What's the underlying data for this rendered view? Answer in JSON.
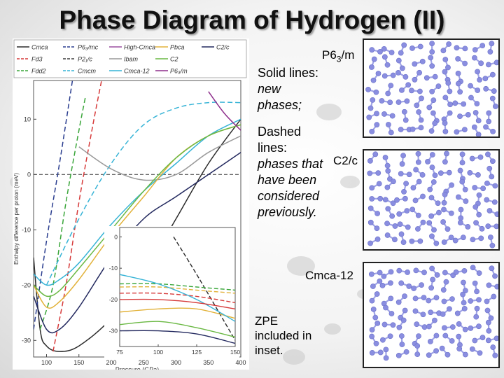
{
  "slide": {
    "title": "Phase Diagram of Hydrogen (II)",
    "note_solid_label": "Solid lines:",
    "note_solid_text": "new phases;",
    "note_dashed_label": "Dashed lines:",
    "note_dashed_text": "phases that have been considered previously.",
    "phase_top": "P6",
    "phase_top_sub": "3",
    "phase_top_suffix": "/m",
    "phase_mid": "C2/c",
    "phase_bottom": "Cmca-12",
    "zpe_note": "ZPE included in inset."
  },
  "colors": {
    "cmca": "#2b2b2b",
    "fd3": "#d63a3a",
    "fdd2": "#3aa63a",
    "p6mc": "#2a3d8f",
    "p21c": "#3e3e3e",
    "cmcm": "#35b3d6",
    "highcmca": "#9b4fa0",
    "ibam": "#999999",
    "cmca12": "#35b3d6",
    "pbca": "#e2b23a",
    "c2": "#6ab843",
    "p63m": "#8e2f8c",
    "c2c": "#22285e",
    "molecule": "#8a8ee0"
  },
  "chart_data": {
    "type": "line",
    "xlabel": "Pressure (GPa)",
    "ylabel": "Enthalpy difference per proton (meV)",
    "x_ticks": [
      100,
      150,
      200,
      250,
      300,
      350,
      400
    ],
    "y_ticks": [
      10,
      0,
      -10,
      -20,
      -30
    ],
    "xlim": [
      80,
      400
    ],
    "ylim": [
      -33,
      17
    ],
    "legend": [
      {
        "name": "Cmca",
        "style": "solid",
        "color": "#2b2b2b"
      },
      {
        "name": "Fd3",
        "style": "dashed",
        "color": "#d63a3a"
      },
      {
        "name": "Fdd2",
        "style": "dashed",
        "color": "#3aa63a"
      },
      {
        "name": "P6₃/mc",
        "style": "dashed",
        "color": "#2a3d8f"
      },
      {
        "name": "P2₁/c",
        "style": "dashed",
        "color": "#3e3e3e"
      },
      {
        "name": "Cmcm",
        "style": "dashed",
        "color": "#35b3d6"
      },
      {
        "name": "High-Cmca",
        "style": "solid",
        "color": "#9b4fa0"
      },
      {
        "name": "Ibam",
        "style": "solid",
        "color": "#999999"
      },
      {
        "name": "Cmca-12",
        "style": "solid",
        "color": "#35b3d6"
      },
      {
        "name": "Pbca",
        "style": "solid",
        "color": "#e2b23a"
      },
      {
        "name": "C2",
        "style": "solid",
        "color": "#6ab843"
      },
      {
        "name": "P6₃/m",
        "style": "solid",
        "color": "#8e2f8c"
      },
      {
        "name": "C2/c",
        "style": "solid",
        "color": "#22285e"
      }
    ],
    "series": [
      {
        "name": "Cmca",
        "style": "solid",
        "color": "#2b2b2b",
        "points": [
          [
            80,
            -15
          ],
          [
            90,
            -28
          ],
          [
            100,
            -31
          ],
          [
            120,
            -32
          ],
          [
            150,
            -31
          ],
          [
            200,
            -26
          ],
          [
            250,
            -18
          ],
          [
            300,
            -8
          ],
          [
            350,
            2
          ],
          [
            400,
            10
          ]
        ]
      },
      {
        "name": "Fd3",
        "style": "dashed",
        "color": "#d63a3a",
        "points": [
          [
            110,
            -32
          ],
          [
            130,
            -20
          ],
          [
            150,
            -5
          ],
          [
            170,
            8
          ],
          [
            185,
            17
          ]
        ]
      },
      {
        "name": "Fdd2",
        "style": "dashed",
        "color": "#3aa63a",
        "points": [
          [
            90,
            -28
          ],
          [
            110,
            -20
          ],
          [
            130,
            -5
          ],
          [
            150,
            8
          ],
          [
            160,
            14
          ]
        ]
      },
      {
        "name": "P6₃/mc",
        "style": "dashed",
        "color": "#2a3d8f",
        "points": [
          [
            80,
            -28
          ],
          [
            100,
            -12
          ],
          [
            120,
            2
          ],
          [
            140,
            17
          ]
        ]
      },
      {
        "name": "Cmcm",
        "style": "dashed",
        "color": "#35b3d6",
        "points": [
          [
            100,
            -20
          ],
          [
            150,
            -8
          ],
          [
            200,
            2
          ],
          [
            250,
            9
          ],
          [
            300,
            12
          ],
          [
            350,
            13
          ],
          [
            400,
            13
          ]
        ]
      },
      {
        "name": "Ibam",
        "style": "solid",
        "color": "#999999",
        "points": [
          [
            150,
            5
          ],
          [
            200,
            1
          ],
          [
            250,
            -1
          ],
          [
            300,
            0
          ],
          [
            350,
            4
          ],
          [
            400,
            7
          ]
        ]
      },
      {
        "name": "Cmca-12",
        "style": "solid",
        "color": "#35b3d6",
        "points": [
          [
            80,
            -18
          ],
          [
            100,
            -20
          ],
          [
            120,
            -19
          ],
          [
            150,
            -16
          ],
          [
            200,
            -9
          ],
          [
            250,
            -3
          ],
          [
            300,
            2
          ],
          [
            350,
            7
          ],
          [
            400,
            10
          ]
        ]
      },
      {
        "name": "Pbca",
        "style": "solid",
        "color": "#e2b23a",
        "points": [
          [
            80,
            -20
          ],
          [
            100,
            -24
          ],
          [
            120,
            -23
          ],
          [
            150,
            -19
          ],
          [
            200,
            -11
          ],
          [
            250,
            -4
          ],
          [
            300,
            3
          ],
          [
            350,
            7
          ],
          [
            400,
            9
          ]
        ]
      },
      {
        "name": "C2",
        "style": "solid",
        "color": "#6ab843",
        "points": [
          [
            80,
            -20
          ],
          [
            100,
            -22
          ],
          [
            120,
            -21
          ],
          [
            150,
            -17
          ],
          [
            200,
            -10
          ],
          [
            250,
            -3
          ],
          [
            300,
            3
          ],
          [
            350,
            7
          ],
          [
            400,
            9
          ]
        ]
      },
      {
        "name": "P6₃/m",
        "style": "solid",
        "color": "#8e2f8c",
        "points": [
          [
            350,
            15
          ],
          [
            375,
            11
          ],
          [
            400,
            8
          ]
        ]
      },
      {
        "name": "C2/c",
        "style": "solid",
        "color": "#22285e",
        "points": [
          [
            80,
            -22
          ],
          [
            100,
            -28
          ],
          [
            120,
            -28
          ],
          [
            150,
            -24
          ],
          [
            200,
            -15
          ],
          [
            250,
            -8
          ],
          [
            300,
            -4
          ],
          [
            350,
            0
          ],
          [
            400,
            4
          ]
        ]
      }
    ],
    "inset": {
      "xlabel": "",
      "x_ticks": [
        75,
        100,
        125,
        150
      ],
      "y_ticks": [
        0,
        -10,
        -20,
        -30
      ],
      "xlim": [
        75,
        150
      ],
      "ylim": [
        -35,
        3
      ],
      "series": [
        {
          "name": "Cmca",
          "style": "dashed",
          "color": "#2b2b2b",
          "points": [
            [
              110,
              0
            ],
            [
              125,
              -12
            ],
            [
              150,
              -33
            ]
          ]
        },
        {
          "name": "Fd3",
          "style": "dashed",
          "color": "#d63a3a",
          "points": [
            [
              75,
              -18
            ],
            [
              100,
              -18
            ],
            [
              125,
              -19
            ],
            [
              150,
              -21
            ]
          ]
        },
        {
          "name": "Fdd2",
          "style": "dashed",
          "color": "#3aa63a",
          "points": [
            [
              75,
              -15
            ],
            [
              100,
              -15
            ],
            [
              125,
              -16
            ],
            [
              150,
              -17
            ]
          ]
        },
        {
          "name": "Pbca",
          "style": "dashed",
          "color": "#e2b23a",
          "points": [
            [
              75,
              -16
            ],
            [
              100,
              -16
            ],
            [
              125,
              -17
            ],
            [
              150,
              -18
            ]
          ]
        },
        {
          "name": "Pbca",
          "style": "solid",
          "color": "#e2b23a",
          "points": [
            [
              75,
              -24
            ],
            [
              100,
              -23
            ],
            [
              125,
              -23
            ],
            [
              150,
              -26
            ]
          ]
        },
        {
          "name": "Cmca-12",
          "style": "solid",
          "color": "#35b3d6",
          "points": [
            [
              75,
              -12
            ],
            [
              100,
              -15
            ],
            [
              125,
              -20
            ],
            [
              150,
              -27
            ]
          ]
        },
        {
          "name": "C2",
          "style": "solid",
          "color": "#6ab843",
          "points": [
            [
              75,
              -28
            ],
            [
              100,
              -27
            ],
            [
              125,
              -29
            ],
            [
              150,
              -32
            ]
          ]
        },
        {
          "name": "C2/c",
          "style": "solid",
          "color": "#22285e",
          "points": [
            [
              75,
              -30
            ],
            [
              100,
              -30
            ],
            [
              125,
              -31
            ],
            [
              150,
              -34
            ]
          ]
        },
        {
          "name": "Fd3",
          "style": "solid",
          "color": "#d63a3a",
          "points": [
            [
              75,
              -20
            ],
            [
              100,
              -20
            ],
            [
              125,
              -21
            ],
            [
              150,
              -23
            ]
          ]
        }
      ]
    }
  }
}
